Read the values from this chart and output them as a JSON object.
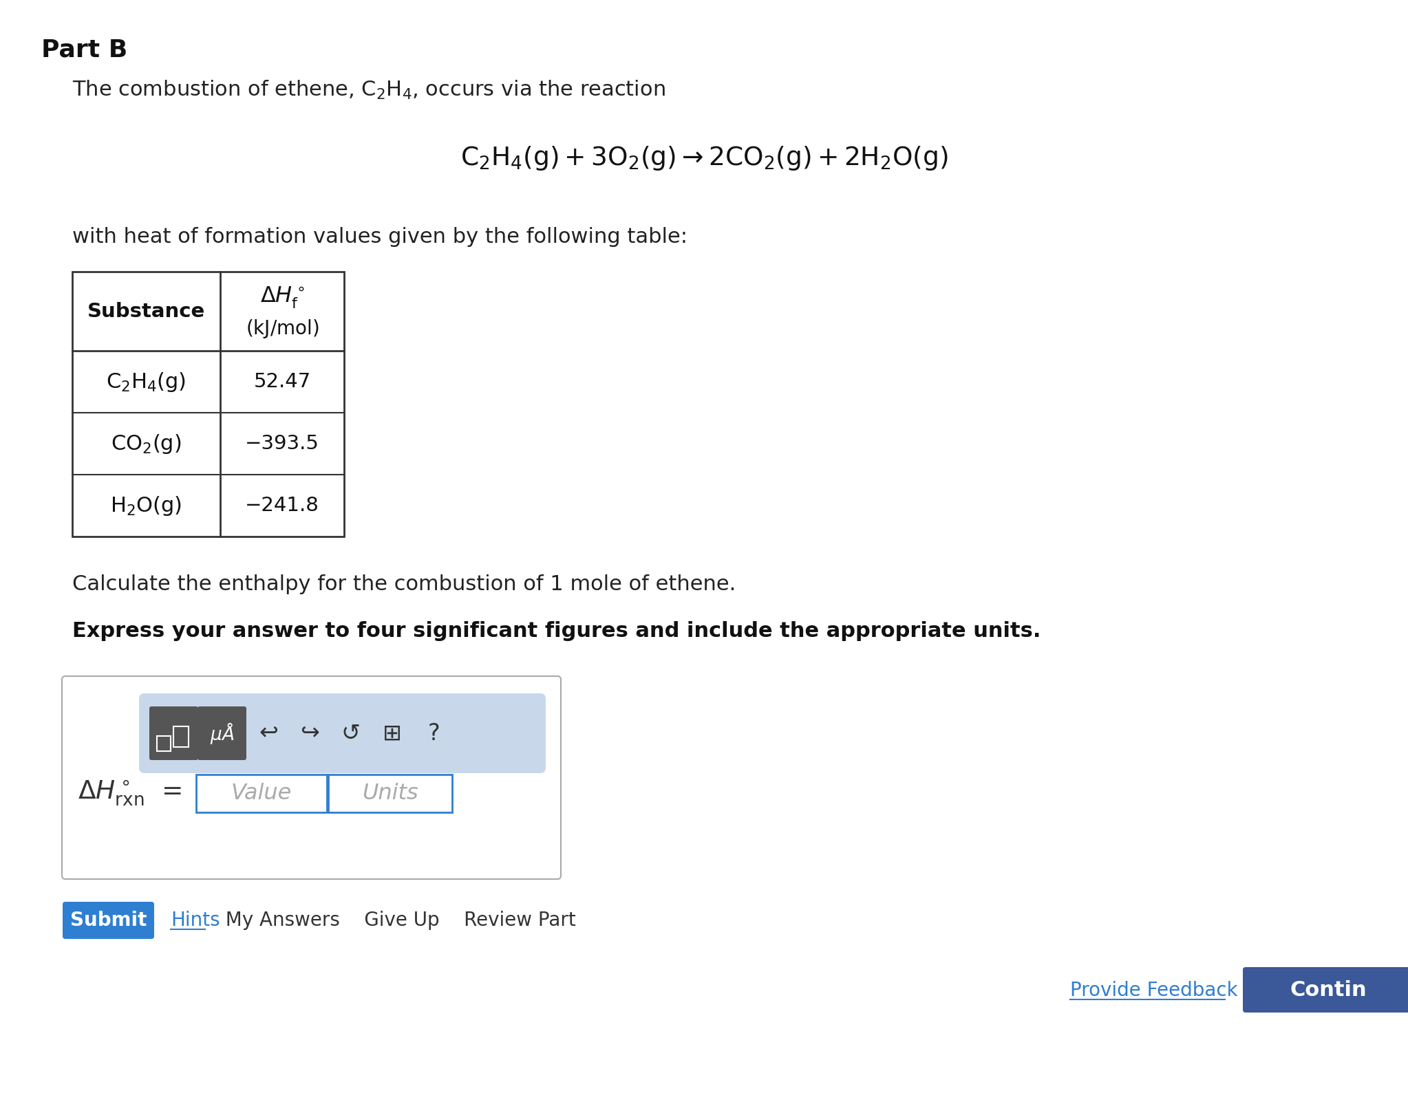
{
  "background_color": "#ffffff",
  "part_b_label": "Part B",
  "intro_text": "The combustion of ethene, $\\mathrm{C_2H_4}$, occurs via the reaction",
  "equation": "$\\mathrm{C_2H_4(g) + 3O_2(g) \\rightarrow 2CO_2(g) + 2H_2O(g)}$",
  "table_intro": "with heat of formation values given by the following table:",
  "table_header_col1": "Substance",
  "table_rows": [
    [
      "$\\mathrm{C_2H_4(g)}$",
      "52.47"
    ],
    [
      "$\\mathrm{CO_2(g)}$",
      "−393.5"
    ],
    [
      "$\\mathrm{H_2O(g)}$",
      "−241.8"
    ]
  ],
  "calc_text": "Calculate the enthalpy for the combustion of 1 mole of ethene.",
  "express_text": "Express your answer to four significant figures and include the appropriate units.",
  "submit_label": "Submit",
  "submit_bg": "#2e7fd1",
  "hints_label": "Hints",
  "hints_color": "#2e7fd1",
  "other_btns": "  My Answers    Give Up    Review Part",
  "feedback_label": "Provide Feedback",
  "continue_label": "Contin",
  "continue_bg": "#3b5898",
  "toolbar_bg": "#c8d8ea",
  "input_border": "#2e7fd1",
  "outer_box_border": "#aaaaaa"
}
